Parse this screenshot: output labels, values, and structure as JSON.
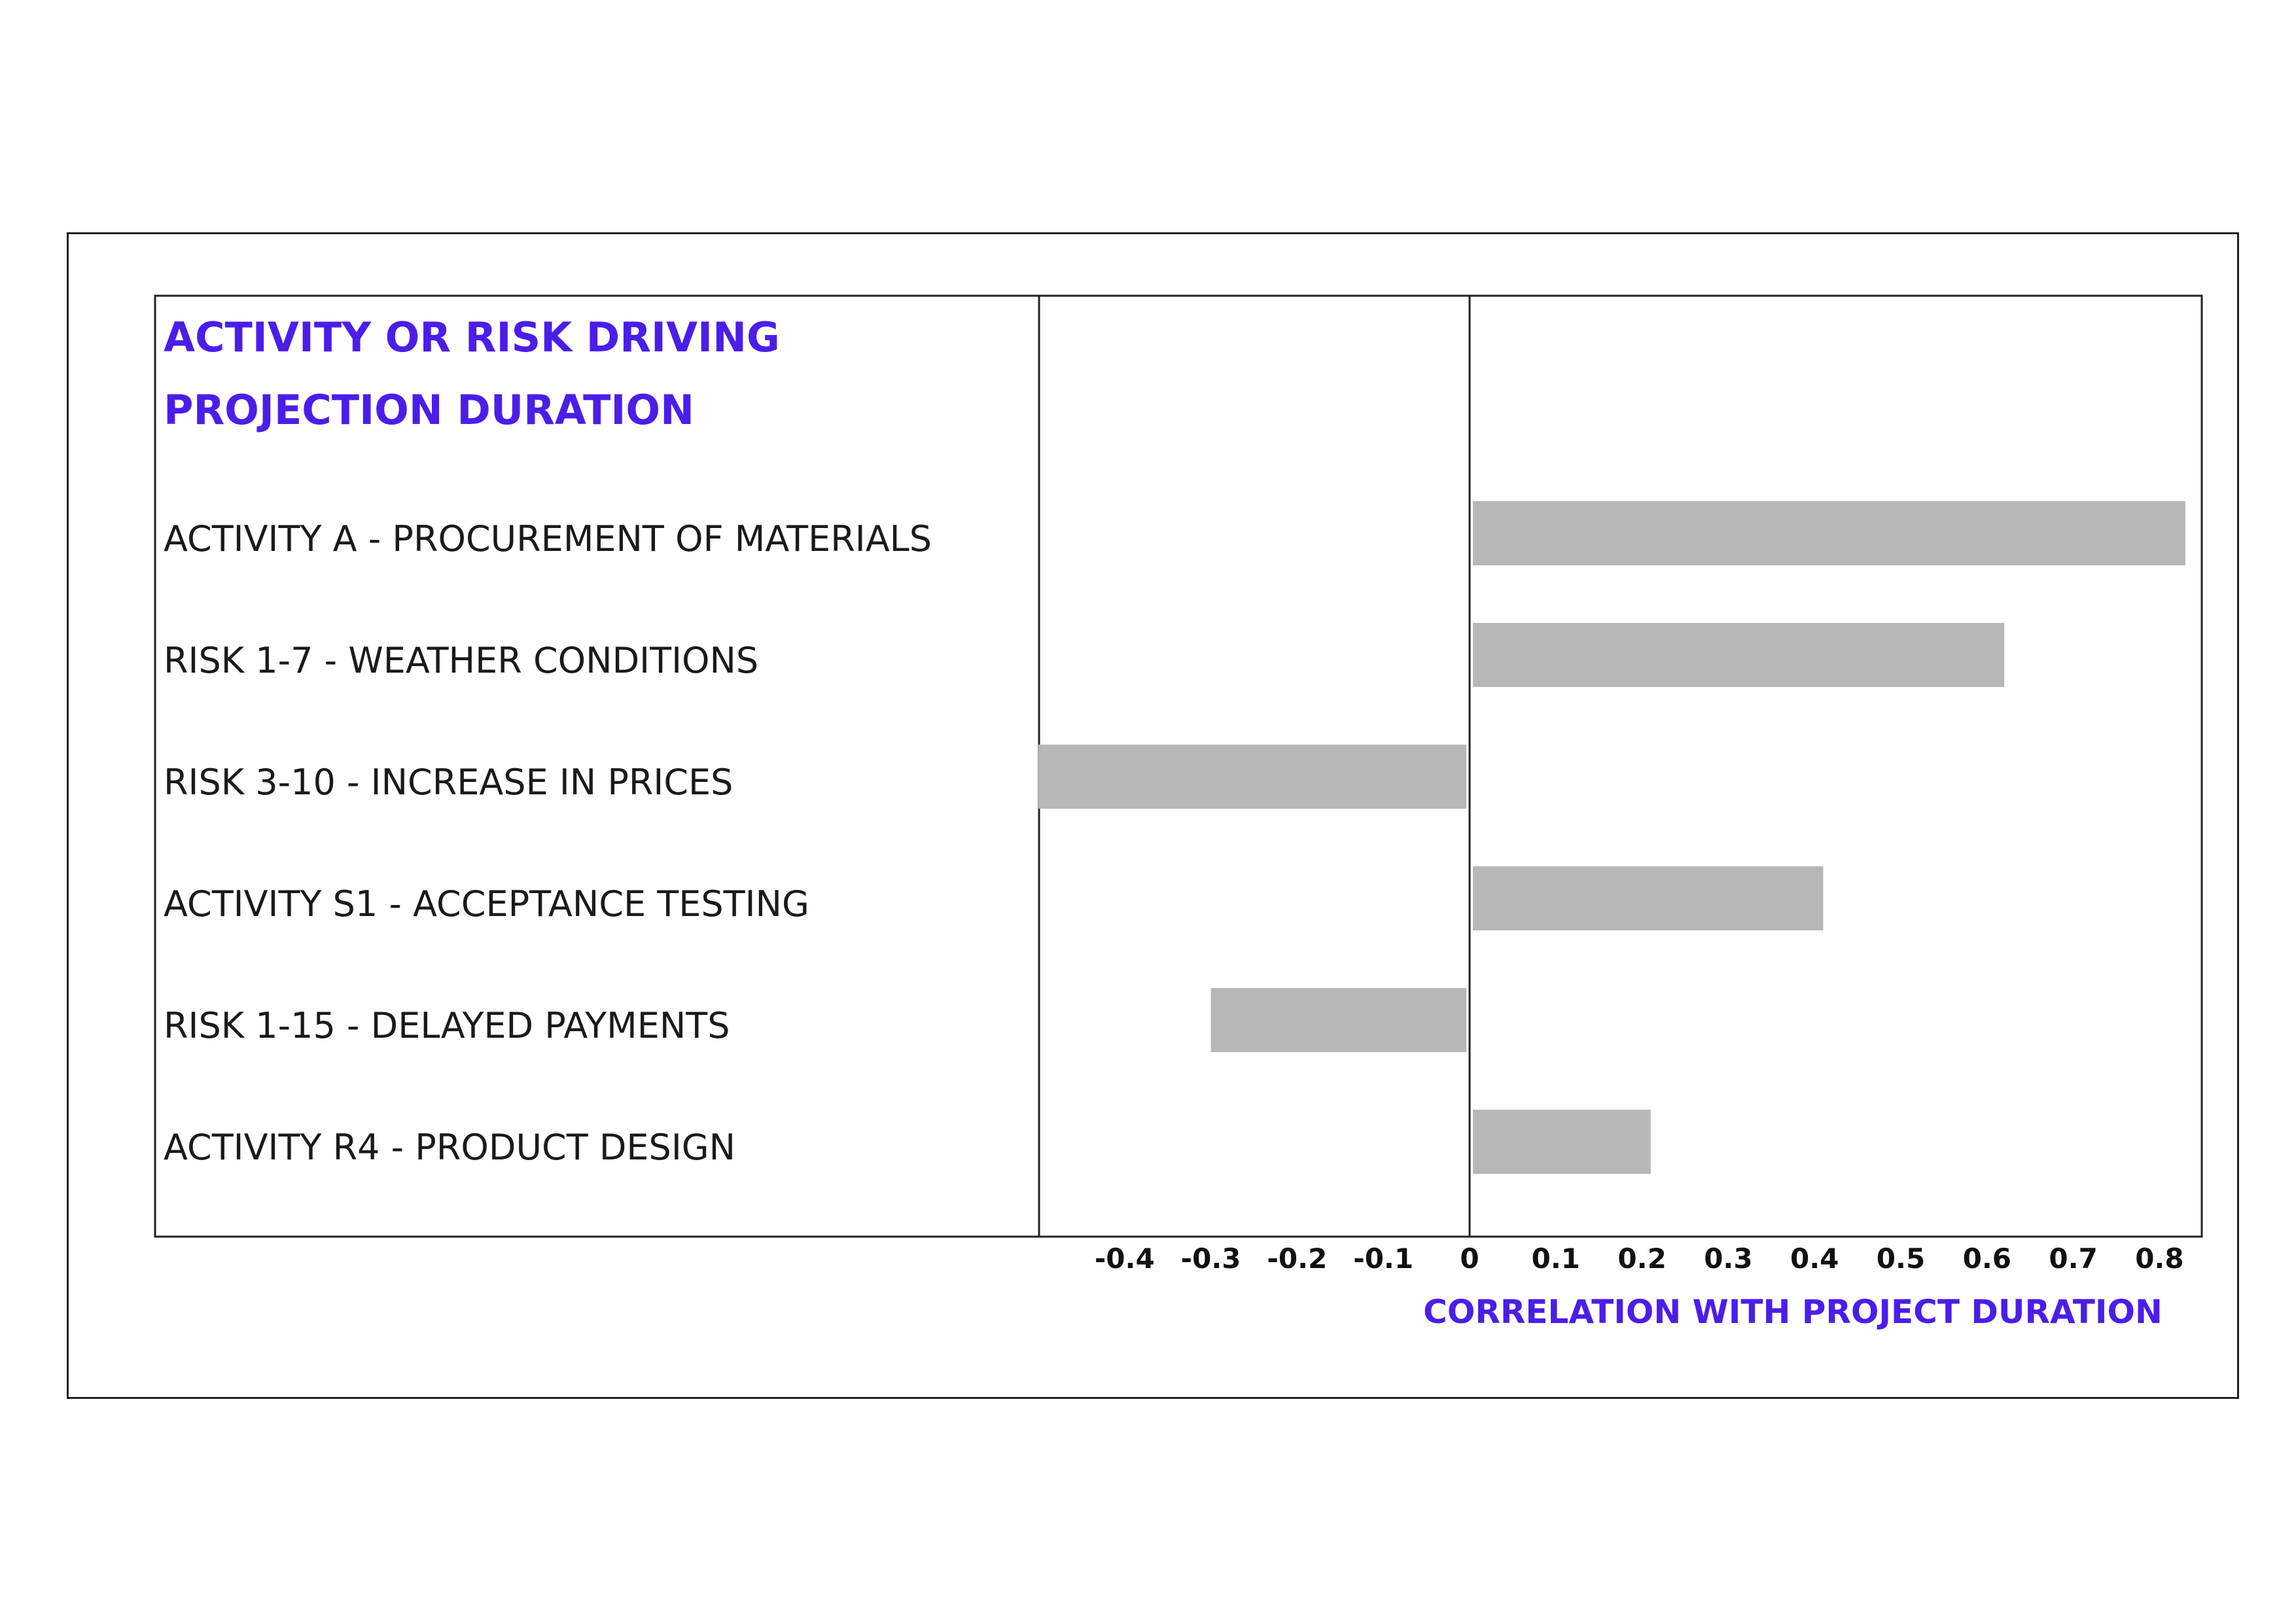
{
  "chart_data": {
    "type": "bar",
    "orientation": "horizontal",
    "title_lines": [
      "ACTIVITY OR RISK DRIVING",
      "PROJECTION DURATION"
    ],
    "xlabel": "CORRELATION WITH PROJECT DURATION",
    "ylabel": "",
    "categories": [
      "ACTIVITY A - PROCUREMENT OF MATERIALS",
      "RISK 1-7 - WEATHER CONDITIONS",
      "RISK 3-10 - INCREASE IN PRICES",
      "ACTIVITY S1 - ACCEPTANCE TESTING",
      "RISK 1-15 - DELAYED PAYMENTS",
      "ACTIVITY R4 - PRODUCT DESIGN"
    ],
    "values": [
      0.83,
      0.62,
      -0.5,
      0.41,
      -0.3,
      0.21
    ],
    "xticks": [
      "-0.4",
      "-0.3",
      "-0.2",
      "-0.1",
      "0",
      "0.1",
      "0.2",
      "0.3",
      "0.4",
      "0.5",
      "0.6",
      "0.7",
      "0.8"
    ],
    "xtick_values": [
      -0.4,
      -0.3,
      -0.2,
      -0.1,
      0,
      0.1,
      0.2,
      0.3,
      0.4,
      0.5,
      0.6,
      0.7,
      0.8
    ],
    "xlim": [
      -0.5,
      0.87
    ],
    "grid": false,
    "colors": {
      "bar": "#b7b7b7",
      "title": "#4a1ee8",
      "axis_title": "#4a1ee8",
      "border": "#222222"
    }
  }
}
